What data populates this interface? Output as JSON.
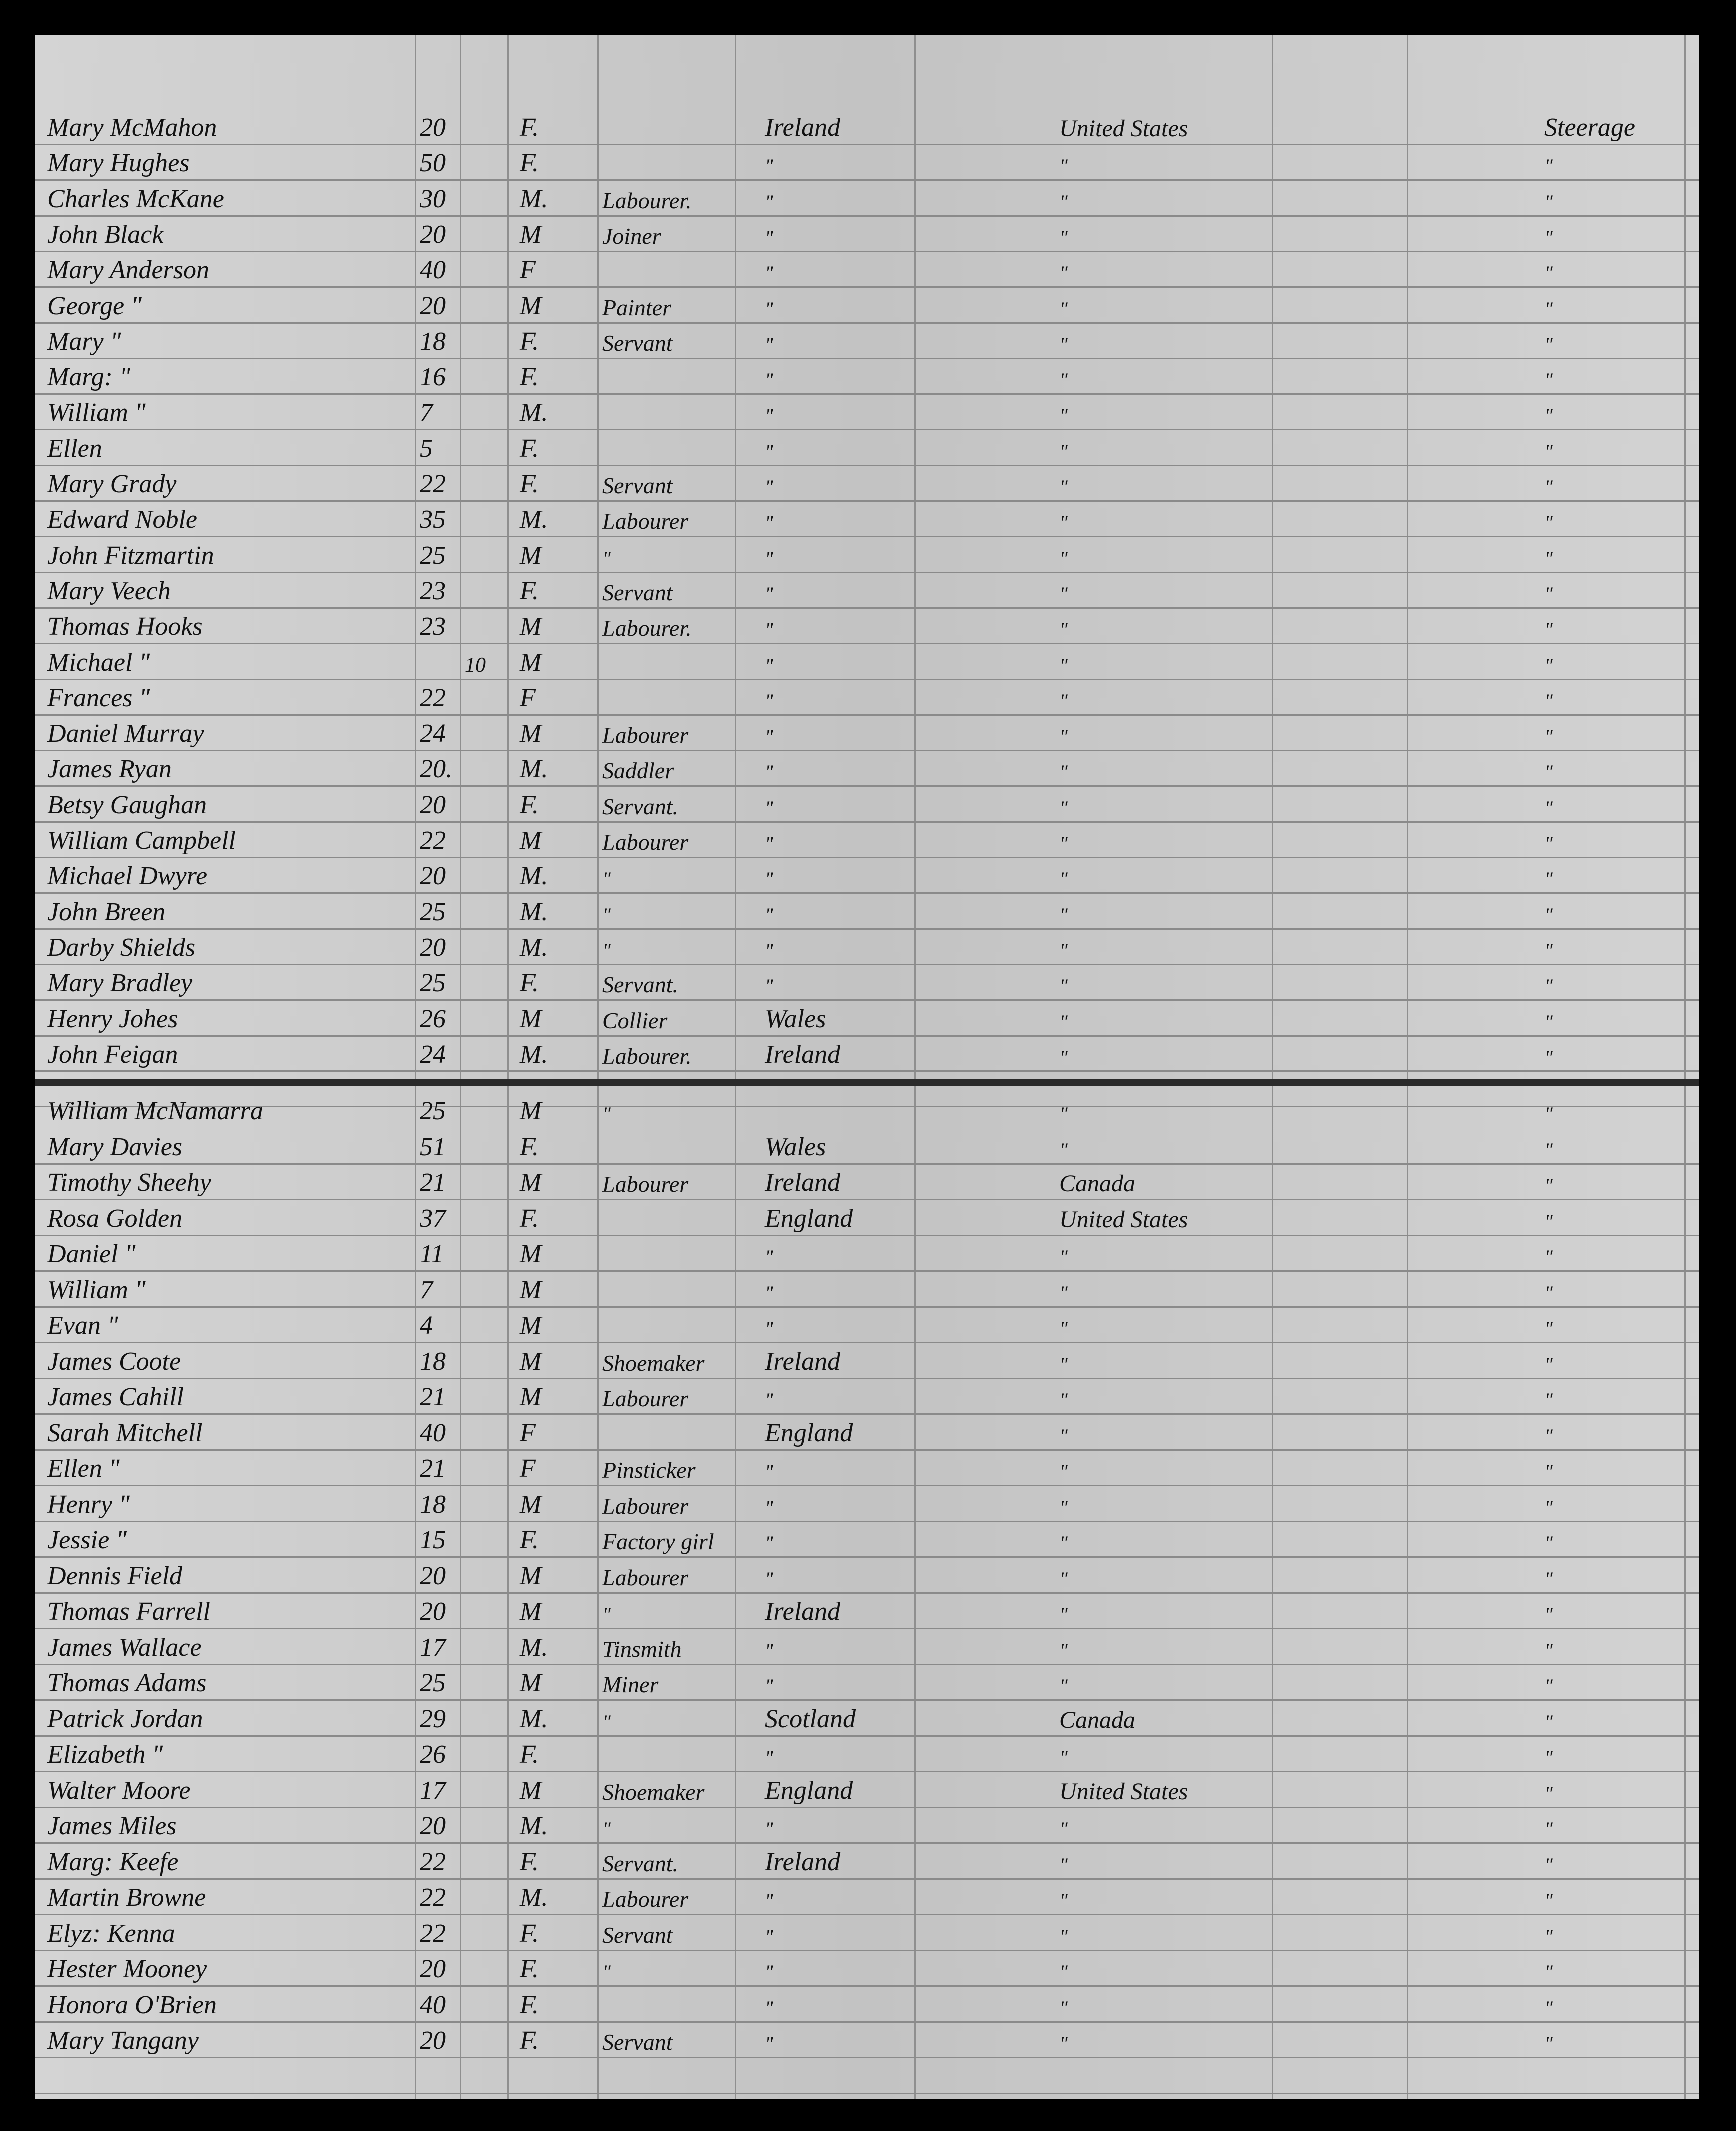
{
  "rows": [
    {
      "name": "Mary McMahon",
      "age": "20",
      "infant": "",
      "sex": "F.",
      "occupation": "",
      "country": "Ireland",
      "destination": "United States",
      "class": "Steerage"
    },
    {
      "name": "Mary Hughes",
      "age": "50",
      "infant": "",
      "sex": "F.",
      "occupation": "",
      "country": "\"",
      "destination": "\"",
      "class": "\""
    },
    {
      "name": "Charles McKane",
      "age": "30",
      "infant": "",
      "sex": "M.",
      "occupation": "Labourer.",
      "country": "\"",
      "destination": "\"",
      "class": "\""
    },
    {
      "name": "John Black",
      "age": "20",
      "infant": "",
      "sex": "M",
      "occupation": "Joiner",
      "country": "\"",
      "destination": "\"",
      "class": "\""
    },
    {
      "name": "Mary Anderson",
      "age": "40",
      "infant": "",
      "sex": "F",
      "occupation": "",
      "country": "\"",
      "destination": "\"",
      "class": "\""
    },
    {
      "name": "George \"",
      "age": "20",
      "infant": "",
      "sex": "M",
      "occupation": "Painter",
      "country": "\"",
      "destination": "\"",
      "class": "\""
    },
    {
      "name": "Mary \"",
      "age": "18",
      "infant": "",
      "sex": "F.",
      "occupation": "Servant",
      "country": "\"",
      "destination": "\"",
      "class": "\""
    },
    {
      "name": "Marg: \"",
      "age": "16",
      "infant": "",
      "sex": "F.",
      "occupation": "",
      "country": "\"",
      "destination": "\"",
      "class": "\""
    },
    {
      "name": "William \"",
      "age": "7",
      "infant": "",
      "sex": "M.",
      "occupation": "",
      "country": "\"",
      "destination": "\"",
      "class": "\""
    },
    {
      "name": "Ellen",
      "age": "5",
      "infant": "",
      "sex": "F.",
      "occupation": "",
      "country": "\"",
      "destination": "\"",
      "class": "\""
    },
    {
      "name": "Mary Grady",
      "age": "22",
      "infant": "",
      "sex": "F.",
      "occupation": "Servant",
      "country": "\"",
      "destination": "\"",
      "class": "\""
    },
    {
      "name": "Edward Noble",
      "age": "35",
      "infant": "",
      "sex": "M.",
      "occupation": "Labourer",
      "country": "\"",
      "destination": "\"",
      "class": "\""
    },
    {
      "name": "John Fitzmartin",
      "age": "25",
      "infant": "",
      "sex": "M",
      "occupation": "\"",
      "country": "\"",
      "destination": "\"",
      "class": "\""
    },
    {
      "name": "Mary Veech",
      "age": "23",
      "infant": "",
      "sex": "F.",
      "occupation": "Servant",
      "country": "\"",
      "destination": "\"",
      "class": "\""
    },
    {
      "name": "Thomas Hooks",
      "age": "23",
      "infant": "",
      "sex": "M",
      "occupation": "Labourer.",
      "country": "\"",
      "destination": "\"",
      "class": "\""
    },
    {
      "name": "Michael \"",
      "age": "",
      "infant": "10",
      "sex": "M",
      "occupation": "",
      "country": "\"",
      "destination": "\"",
      "class": "\""
    },
    {
      "name": "Frances \"",
      "age": "22",
      "infant": "",
      "sex": "F",
      "occupation": "",
      "country": "\"",
      "destination": "\"",
      "class": "\""
    },
    {
      "name": "Daniel Murray",
      "age": "24",
      "infant": "",
      "sex": "M",
      "occupation": "Labourer",
      "country": "\"",
      "destination": "\"",
      "class": "\""
    },
    {
      "name": "James Ryan",
      "age": "20.",
      "infant": "",
      "sex": "M.",
      "occupation": "Saddler",
      "country": "\"",
      "destination": "\"",
      "class": "\""
    },
    {
      "name": "Betsy Gaughan",
      "age": "20",
      "infant": "",
      "sex": "F.",
      "occupation": "Servant.",
      "country": "\"",
      "destination": "\"",
      "class": "\""
    },
    {
      "name": "William Campbell",
      "age": "22",
      "infant": "",
      "sex": "M",
      "occupation": "Labourer",
      "country": "\"",
      "destination": "\"",
      "class": "\""
    },
    {
      "name": "Michael Dwyre",
      "age": "20",
      "infant": "",
      "sex": "M.",
      "occupation": "\"",
      "country": "\"",
      "destination": "\"",
      "class": "\""
    },
    {
      "name": "John Breen",
      "age": "25",
      "infant": "",
      "sex": "M.",
      "occupation": "\"",
      "country": "\"",
      "destination": "\"",
      "class": "\""
    },
    {
      "name": "Darby Shields",
      "age": "20",
      "infant": "",
      "sex": "M.",
      "occupation": "\"",
      "country": "\"",
      "destination": "\"",
      "class": "\""
    },
    {
      "name": "Mary Bradley",
      "age": "25",
      "infant": "",
      "sex": "F.",
      "occupation": "Servant.",
      "country": "\"",
      "destination": "\"",
      "class": "\""
    },
    {
      "name": "Henry Johes",
      "age": "26",
      "infant": "",
      "sex": "M",
      "occupation": "Collier",
      "country": "Wales",
      "destination": "\"",
      "class": "\""
    },
    {
      "name": "John Feigan",
      "age": "24",
      "infant": "",
      "sex": "M.",
      "occupation": "Labourer.",
      "country": "Ireland",
      "destination": "\"",
      "class": "\""
    },
    {
      "name": "William McNamarra",
      "age": "25",
      "infant": "",
      "sex": "M",
      "occupation": "\"",
      "country": "",
      "destination": "\"",
      "class": "\""
    },
    {
      "name": "Mary Davies",
      "age": "51",
      "infant": "",
      "sex": "F.",
      "occupation": "",
      "country": "Wales",
      "destination": "\"",
      "class": "\""
    },
    {
      "name": "Timothy Sheehy",
      "age": "21",
      "infant": "",
      "sex": "M",
      "occupation": "Labourer",
      "country": "Ireland",
      "destination": "Canada",
      "class": "\""
    },
    {
      "name": "Rosa Golden",
      "age": "37",
      "infant": "",
      "sex": "F.",
      "occupation": "",
      "country": "England",
      "destination": "United States",
      "class": "\""
    },
    {
      "name": "Daniel \"",
      "age": "11",
      "infant": "",
      "sex": "M",
      "occupation": "",
      "country": "\"",
      "destination": "\"",
      "class": "\""
    },
    {
      "name": "William \"",
      "age": "7",
      "infant": "",
      "sex": "M",
      "occupation": "",
      "country": "\"",
      "destination": "\"",
      "class": "\""
    },
    {
      "name": "Evan \"",
      "age": "4",
      "infant": "",
      "sex": "M",
      "occupation": "",
      "country": "\"",
      "destination": "\"",
      "class": "\""
    },
    {
      "name": "James Coote",
      "age": "18",
      "infant": "",
      "sex": "M",
      "occupation": "Shoemaker",
      "country": "Ireland",
      "destination": "\"",
      "class": "\""
    },
    {
      "name": "James Cahill",
      "age": "21",
      "infant": "",
      "sex": "M",
      "occupation": "Labourer",
      "country": "\"",
      "destination": "\"",
      "class": "\""
    },
    {
      "name": "Sarah Mitchell",
      "age": "40",
      "infant": "",
      "sex": "F",
      "occupation": "",
      "country": "England",
      "destination": "\"",
      "class": "\""
    },
    {
      "name": "Ellen \"",
      "age": "21",
      "infant": "",
      "sex": "F",
      "occupation": "Pinsticker",
      "country": "\"",
      "destination": "\"",
      "class": "\""
    },
    {
      "name": "Henry \"",
      "age": "18",
      "infant": "",
      "sex": "M",
      "occupation": "Labourer",
      "country": "\"",
      "destination": "\"",
      "class": "\""
    },
    {
      "name": "Jessie \"",
      "age": "15",
      "infant": "",
      "sex": "F.",
      "occupation": "Factory girl",
      "country": "\"",
      "destination": "\"",
      "class": "\""
    },
    {
      "name": "Dennis Field",
      "age": "20",
      "infant": "",
      "sex": "M",
      "occupation": "Labourer",
      "country": "\"",
      "destination": "\"",
      "class": "\""
    },
    {
      "name": "Thomas Farrell",
      "age": "20",
      "infant": "",
      "sex": "M",
      "occupation": "\"",
      "country": "Ireland",
      "destination": "\"",
      "class": "\""
    },
    {
      "name": "James Wallace",
      "age": "17",
      "infant": "",
      "sex": "M.",
      "occupation": "Tinsmith",
      "country": "\"",
      "destination": "\"",
      "class": "\""
    },
    {
      "name": "Thomas Adams",
      "age": "25",
      "infant": "",
      "sex": "M",
      "occupation": "Miner",
      "country": "\"",
      "destination": "\"",
      "class": "\""
    },
    {
      "name": "Patrick Jordan",
      "age": "29",
      "infant": "",
      "sex": "M.",
      "occupation": "\"",
      "country": "Scotland",
      "destination": "Canada",
      "class": "\""
    },
    {
      "name": "Elizabeth \"",
      "age": "26",
      "infant": "",
      "sex": "F.",
      "occupation": "",
      "country": "\"",
      "destination": "\"",
      "class": "\""
    },
    {
      "name": "Walter Moore",
      "age": "17",
      "infant": "",
      "sex": "M",
      "occupation": "Shoemaker",
      "country": "England",
      "destination": "United States",
      "class": "\""
    },
    {
      "name": "James Miles",
      "age": "20",
      "infant": "",
      "sex": "M.",
      "occupation": "\"",
      "country": "\"",
      "destination": "\"",
      "class": "\""
    },
    {
      "name": "Marg: Keefe",
      "age": "22",
      "infant": "",
      "sex": "F.",
      "occupation": "Servant.",
      "country": "Ireland",
      "destination": "\"",
      "class": "\""
    },
    {
      "name": "Martin Browne",
      "age": "22",
      "infant": "",
      "sex": "M.",
      "occupation": "Labourer",
      "country": "\"",
      "destination": "\"",
      "class": "\""
    },
    {
      "name": "Elyz: Kenna",
      "age": "22",
      "infant": "",
      "sex": "F.",
      "occupation": "Servant",
      "country": "\"",
      "destination": "\"",
      "class": "\""
    },
    {
      "name": "Hester Mooney",
      "age": "20",
      "infant": "",
      "sex": "F.",
      "occupation": "\"",
      "country": "\"",
      "destination": "\"",
      "class": "\""
    },
    {
      "name": "Honora O'Brien",
      "age": "40",
      "infant": "",
      "sex": "F.",
      "occupation": "",
      "country": "\"",
      "destination": "\"",
      "class": "\""
    },
    {
      "name": "Mary Tangany",
      "age": "20",
      "infant": "",
      "sex": "F.",
      "occupation": "Servant",
      "country": "\"",
      "destination": "\"",
      "class": "\""
    }
  ]
}
